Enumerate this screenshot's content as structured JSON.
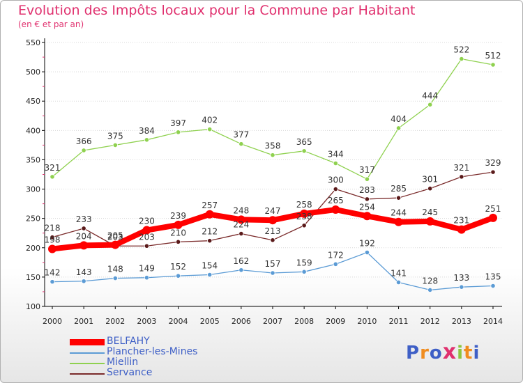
{
  "title": "Evolution des Impôts locaux pour la Commune par Habitant",
  "subtitle": "(en € et par an)",
  "logo": {
    "text": "Proxiti",
    "colors": [
      "#3e5fc6",
      "#f08c1e",
      "#3e5fc6",
      "#e0306e",
      "#8cc63e",
      "#f08c1e",
      "#3e5fc6"
    ]
  },
  "chart_data": {
    "type": "line",
    "title": "Evolution des Impôts locaux pour la Commune par Habitant",
    "subtitle": "(en € et par an)",
    "xlabel": "",
    "ylabel": "",
    "ylim": [
      100,
      550
    ],
    "yticks": [
      "100",
      "150",
      "200",
      "250",
      "300",
      "350",
      "400",
      "450",
      "500",
      "550"
    ],
    "ytick_values": [
      100,
      150,
      200,
      250,
      300,
      350,
      400,
      450,
      500,
      550
    ],
    "categories": [
      "2000",
      "2001",
      "2002",
      "2003",
      "2004",
      "2005",
      "2006",
      "2007",
      "2008",
      "2009",
      "2010",
      "2011",
      "2012",
      "2013",
      "2014"
    ],
    "legend_position": "bottom-left",
    "series": [
      {
        "name": "BELFAHY",
        "color": "#ff0000",
        "marker": "#ff0000",
        "emphasis": true,
        "values": [
          198,
          204,
          205,
          230,
          239,
          257,
          248,
          247,
          258,
          265,
          254,
          244,
          245,
          231,
          251
        ],
        "labels": [
          "198",
          "204",
          "205",
          "230",
          "239",
          "257",
          "248",
          "247",
          "258",
          "265",
          "254",
          "244",
          "245",
          "231",
          "251"
        ]
      },
      {
        "name": "Plancher-les-Mines",
        "color": "#5b9bd5",
        "marker": "#5b9bd5",
        "emphasis": false,
        "values": [
          142,
          143,
          148,
          149,
          152,
          154,
          162,
          157,
          159,
          172,
          192,
          141,
          128,
          133,
          135
        ],
        "labels": [
          "142",
          "143",
          "148",
          "149",
          "152",
          "154",
          "162",
          "157",
          "159",
          "172",
          "192",
          "141",
          "128",
          "133",
          "135"
        ]
      },
      {
        "name": "Miellin",
        "color": "#8fd14f",
        "marker": "#8fd14f",
        "emphasis": false,
        "values": [
          321,
          366,
          375,
          384,
          397,
          402,
          377,
          358,
          365,
          344,
          317,
          404,
          444,
          522,
          512
        ],
        "labels": [
          "321",
          "366",
          "375",
          "384",
          "397",
          "402",
          "377",
          "358",
          "365",
          "344",
          "317",
          "404",
          "444",
          "522",
          "512"
        ]
      },
      {
        "name": "Servance",
        "color": "#7a2a2a",
        "marker": "#5a1a1a",
        "emphasis": false,
        "values": [
          218,
          233,
          203,
          203,
          210,
          212,
          224,
          213,
          238,
          300,
          283,
          285,
          301,
          321,
          329
        ],
        "labels": [
          "218",
          "233",
          "203",
          "203",
          "210",
          "212",
          "224",
          "213",
          "238",
          "300",
          "283",
          "285",
          "301",
          "321",
          "329"
        ]
      }
    ]
  }
}
